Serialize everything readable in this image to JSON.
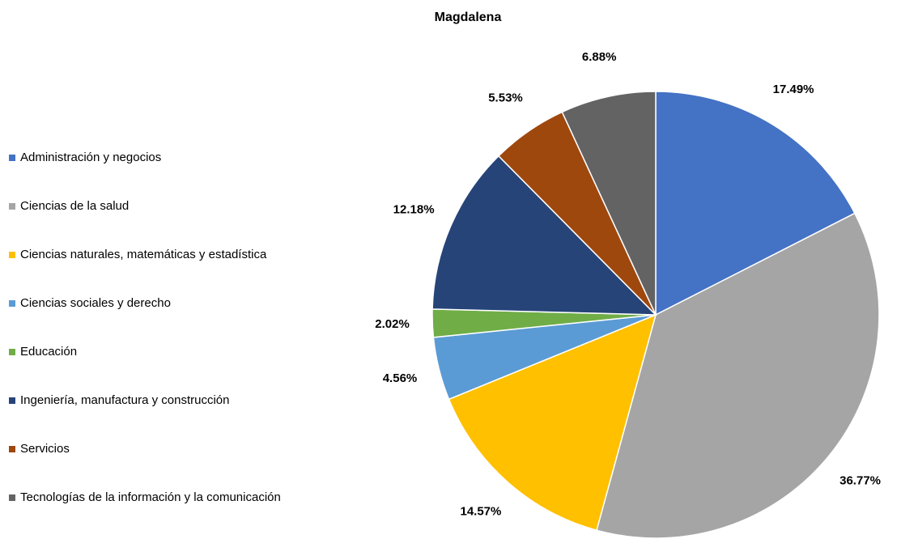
{
  "chart_data": {
    "type": "pie",
    "title": "Magdalena",
    "categories": [
      "Administración y negocios",
      "Ciencias de la salud",
      "Ciencias naturales, matemáticas y estadística",
      "Ciencias sociales y derecho",
      "Educación",
      "Ingeniería, manufactura y construcción",
      "Servicios",
      "Tecnologías de la información y la comunicación"
    ],
    "values": [
      17.49,
      36.77,
      14.57,
      4.56,
      2.02,
      12.18,
      5.53,
      6.88
    ],
    "value_labels": [
      "17.49%",
      "36.77%",
      "14.57%",
      "4.56%",
      "2.02%",
      "12.18%",
      "5.53%",
      "6.88%"
    ],
    "colors": [
      "#4472c4",
      "#a5a5a5",
      "#ffc000",
      "#5b9bd5",
      "#70ad47",
      "#264478",
      "#9e480e",
      "#636363"
    ],
    "legend": "left"
  }
}
